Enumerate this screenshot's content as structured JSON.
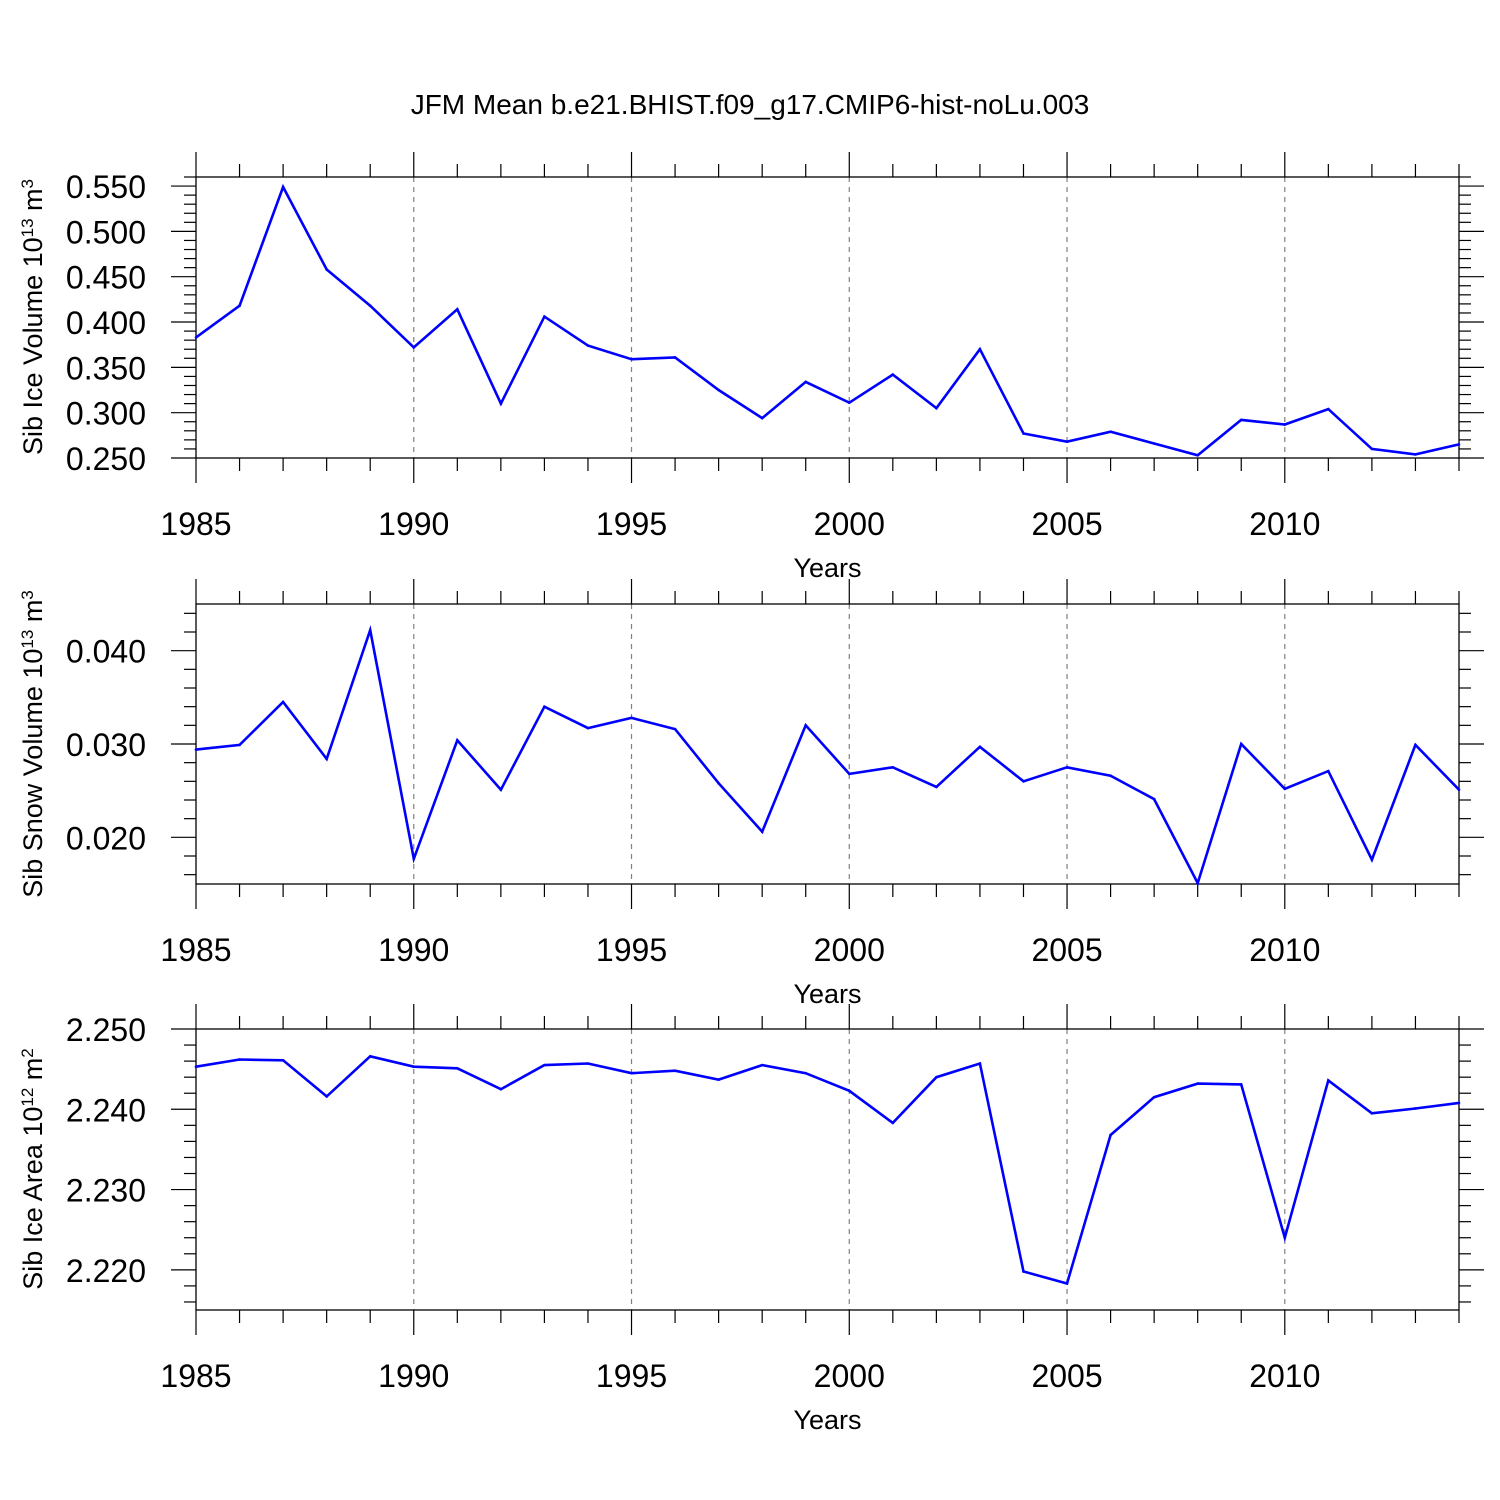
{
  "title": "JFM Mean b.e21.BHIST.f09_g17.CMIP6-hist-noLu.003",
  "colors": {
    "series": "#0000ff",
    "frame": "#000000",
    "grid": "#808080"
  },
  "chart_data": [
    {
      "type": "line",
      "name": "ice-volume",
      "xlabel": "Years",
      "ylabel_prefix": "Sib Ice Volume 10",
      "ylabel_exp": "13",
      "ylabel_unit": " m",
      "ylabel_unit_exp": "3",
      "xlim": [
        1985,
        2014
      ],
      "ylim": [
        0.25,
        0.56
      ],
      "xticks": [
        "1985",
        "1990",
        "1995",
        "2000",
        "2005",
        "2010"
      ],
      "yticks": [
        "0.250",
        "0.300",
        "0.350",
        "0.400",
        "0.450",
        "0.500",
        "0.550"
      ],
      "x": [
        1985,
        1986,
        1987,
        1988,
        1989,
        1990,
        1991,
        1992,
        1993,
        1994,
        1995,
        1996,
        1997,
        1998,
        1999,
        2000,
        2001,
        2002,
        2003,
        2004,
        2005,
        2006,
        2007,
        2008,
        2009,
        2010,
        2011,
        2012,
        2013,
        2014
      ],
      "values": [
        0.383,
        0.418,
        0.549,
        0.458,
        0.418,
        0.372,
        0.414,
        0.31,
        0.406,
        0.374,
        0.359,
        0.361,
        0.325,
        0.294,
        0.334,
        0.311,
        0.342,
        0.305,
        0.37,
        0.277,
        0.268,
        0.279,
        0.266,
        0.253,
        0.292,
        0.287,
        0.304,
        0.26,
        0.254,
        0.265
      ]
    },
    {
      "type": "line",
      "name": "snow-volume",
      "xlabel": "Years",
      "ylabel_prefix": "Sib Snow Volume 10",
      "ylabel_exp": "13",
      "ylabel_unit": " m",
      "ylabel_unit_exp": "3",
      "xlim": [
        1985,
        2014
      ],
      "ylim": [
        0.015,
        0.045
      ],
      "xticks": [
        "1985",
        "1990",
        "1995",
        "2000",
        "2005",
        "2010"
      ],
      "yticks": [
        "0.020",
        "0.030",
        "0.040"
      ],
      "x": [
        1985,
        1986,
        1987,
        1988,
        1989,
        1990,
        1991,
        1992,
        1993,
        1994,
        1995,
        1996,
        1997,
        1998,
        1999,
        2000,
        2001,
        2002,
        2003,
        2004,
        2005,
        2006,
        2007,
        2008,
        2009,
        2010,
        2011,
        2012,
        2013,
        2014
      ],
      "values": [
        0.0294,
        0.0299,
        0.0345,
        0.0284,
        0.0422,
        0.0177,
        0.0304,
        0.0251,
        0.034,
        0.0317,
        0.0328,
        0.0316,
        0.0258,
        0.0206,
        0.032,
        0.0268,
        0.0275,
        0.0254,
        0.0297,
        0.026,
        0.0275,
        0.0266,
        0.0241,
        0.0151,
        0.03,
        0.0252,
        0.0271,
        0.0176,
        0.0299,
        0.0251
      ]
    },
    {
      "type": "line",
      "name": "ice-area",
      "xlabel": "Years",
      "ylabel_prefix": "Sib Ice Area 10",
      "ylabel_exp": "12",
      "ylabel_unit": " m",
      "ylabel_unit_exp": "2",
      "xlim": [
        1985,
        2014
      ],
      "ylim": [
        2.215,
        2.25
      ],
      "xticks": [
        "1985",
        "1990",
        "1995",
        "2000",
        "2005",
        "2010"
      ],
      "yticks": [
        "2.220",
        "2.230",
        "2.240",
        "2.250"
      ],
      "x": [
        1985,
        1986,
        1987,
        1988,
        1989,
        1990,
        1991,
        1992,
        1993,
        1994,
        1995,
        1996,
        1997,
        1998,
        1999,
        2000,
        2001,
        2002,
        2003,
        2004,
        2005,
        2006,
        2007,
        2008,
        2009,
        2010,
        2011,
        2012,
        2013,
        2014
      ],
      "values": [
        2.2453,
        2.2462,
        2.2461,
        2.2416,
        2.2466,
        2.2453,
        2.2451,
        2.2425,
        2.2455,
        2.2457,
        2.2445,
        2.2448,
        2.2437,
        2.2455,
        2.2445,
        2.2423,
        2.2383,
        2.244,
        2.2457,
        2.2198,
        2.2183,
        2.2368,
        2.2415,
        2.2432,
        2.2431,
        2.224,
        2.2436,
        2.2395,
        2.2401,
        2.2408
      ]
    }
  ]
}
